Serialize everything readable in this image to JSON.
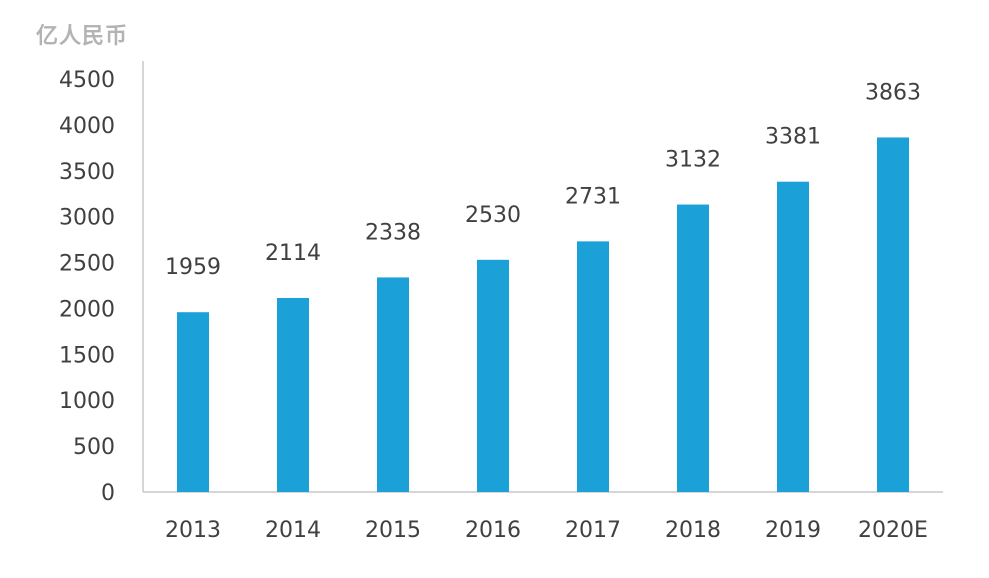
{
  "chart_data": {
    "type": "bar",
    "ylabel": "亿人民币",
    "categories": [
      "2013",
      "2014",
      "2015",
      "2016",
      "2017",
      "2018",
      "2019",
      "2020E"
    ],
    "values": [
      1959,
      2114,
      2338,
      2530,
      2731,
      3132,
      3381,
      3863
    ],
    "data_labels": [
      "1959",
      "2114",
      "2338",
      "2530",
      "2731",
      "3132",
      "3381",
      "3863"
    ],
    "yticks": [
      0,
      500,
      1000,
      1500,
      2000,
      2500,
      3000,
      3500,
      4000,
      4500
    ],
    "ylim": [
      0,
      4500
    ],
    "grid": false,
    "legend": "none",
    "bar_color": "#1ba1d8",
    "axis_color": "#c8c8c8",
    "tick_text_color": "#404040",
    "data_label_color": "#404040"
  }
}
